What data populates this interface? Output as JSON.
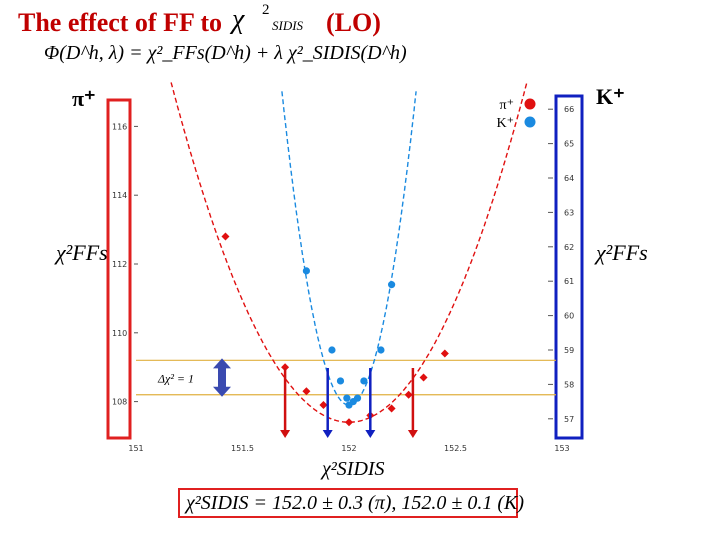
{
  "header": {
    "title": "The effect of FF to",
    "title_chi": "χ",
    "title_sup": "2",
    "title_sub": "SIDIS",
    "title_suffix": "(LO)",
    "formula": "Φ(D^h, λ) = χ²_FFs(D^h) + λ χ²_SIDIS(D^h)"
  },
  "labels": {
    "pi_corner": "π⁺",
    "k_corner": "K⁺",
    "ylabel_left": "χ²FFs",
    "ylabel_right": "χ²FFs",
    "xlabel": "χ²SIDIS",
    "delta_chi": "Δχ² = 1",
    "result": "χ²SIDIS = 152.0 ± 0.3 (π), 152.0 ± 0.1 (K)"
  },
  "colors": {
    "title": "#c00000",
    "pion": "#e01010",
    "kaon": "#1a8ae0",
    "left_box": "#e02020",
    "right_box": "#1020c0",
    "band_line": "#e0b040",
    "arrow_pion": "#d01010",
    "arrow_kaon": "#1020c0",
    "delta_arrow": "#3a4ab0"
  },
  "chart_data": {
    "type": "scatter",
    "x_ticks": [
      "151",
      "151.5",
      "152",
      "152.5",
      "153"
    ],
    "xlim": [
      151,
      153
    ],
    "y_left_ticks": [
      "116",
      "114",
      "112",
      "110",
      "108"
    ],
    "y_left_lim": [
      107,
      117
    ],
    "y_right_ticks": [
      "66",
      "65",
      "64",
      "63",
      "62",
      "61",
      "60",
      "59",
      "58",
      "57"
    ],
    "y_right_lim": [
      56.5,
      66.5
    ],
    "legend": [
      {
        "name": "π⁺",
        "color": "#e01010"
      },
      {
        "name": "K⁺",
        "color": "#1a8ae0"
      }
    ],
    "series": [
      {
        "name": "π⁺",
        "axis": "left",
        "style": "dashed-curve",
        "points": [
          {
            "x": 151.42,
            "y": 112.8
          },
          {
            "x": 151.7,
            "y": 109.0
          },
          {
            "x": 151.8,
            "y": 108.3
          },
          {
            "x": 151.88,
            "y": 107.9
          },
          {
            "x": 152.0,
            "y": 107.4
          },
          {
            "x": 152.1,
            "y": 107.6
          },
          {
            "x": 152.2,
            "y": 107.8
          },
          {
            "x": 152.28,
            "y": 108.2
          },
          {
            "x": 152.35,
            "y": 108.7
          },
          {
            "x": 152.45,
            "y": 109.4
          }
        ]
      },
      {
        "name": "K⁺",
        "axis": "right",
        "style": "dashed-curve",
        "points": [
          {
            "x": 151.8,
            "y": 61.3
          },
          {
            "x": 151.92,
            "y": 59.0
          },
          {
            "x": 151.96,
            "y": 58.1
          },
          {
            "x": 151.99,
            "y": 57.6
          },
          {
            "x": 152.0,
            "y": 57.4
          },
          {
            "x": 152.02,
            "y": 57.5
          },
          {
            "x": 152.04,
            "y": 57.6
          },
          {
            "x": 152.07,
            "y": 58.1
          },
          {
            "x": 152.15,
            "y": 59.0
          },
          {
            "x": 152.2,
            "y": 60.9
          }
        ]
      }
    ],
    "pion_interval": [
      151.7,
      152.3
    ],
    "kaon_interval": [
      151.9,
      152.1
    ],
    "delta_chi2_band_left": [
      108.2,
      109.2
    ]
  }
}
